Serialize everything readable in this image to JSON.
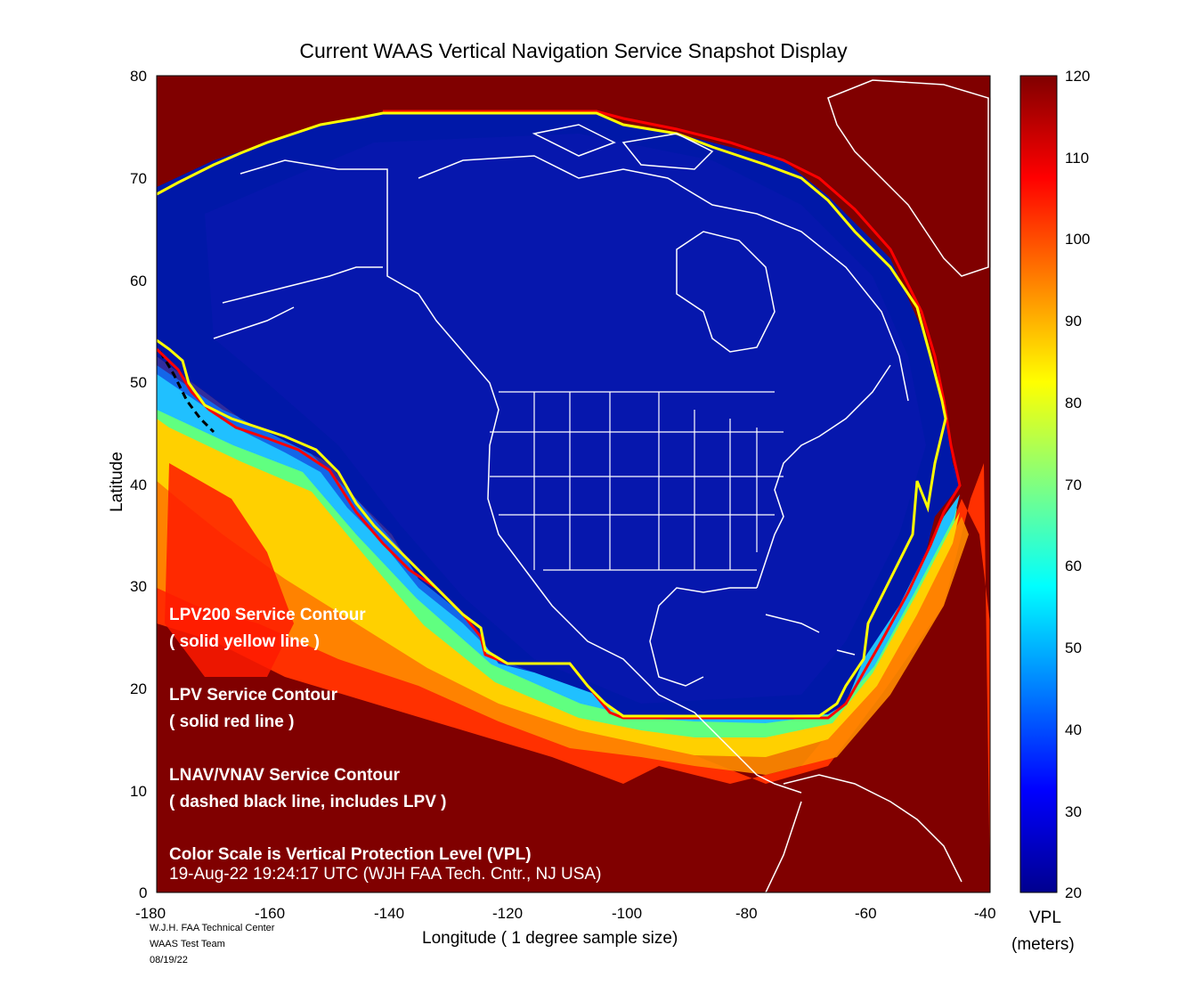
{
  "title": "Current WAAS Vertical Navigation Service Snapshot Display",
  "map": {
    "xlabel": "Longitude   ( 1 degree sample size)",
    "ylabel": "Latitude",
    "xticks": [
      "-180",
      "-160",
      "-140",
      "-120",
      "-100",
      "-80",
      "-60",
      "-40"
    ],
    "yticks": [
      "80",
      "70",
      "60",
      "50",
      "40",
      "30",
      "20",
      "10",
      "0"
    ],
    "lon_range": [
      -180,
      -40
    ],
    "lat_range": [
      0,
      80
    ]
  },
  "annotations": {
    "lpv200_title": "LPV200 Service Contour",
    "lpv200_desc": "( solid yellow line )",
    "lpv_title": "LPV Service Contour",
    "lpv_desc": "( solid red line )",
    "lnav_title": "LNAV/VNAV Service Contour",
    "lnav_desc": "( dashed black line, includes LPV )",
    "scale_note": "Color Scale is Vertical Protection Level (VPL)",
    "timestamp": "19-Aug-22 19:24:17 UTC  (WJH FAA Tech. Cntr., NJ USA)"
  },
  "colorbar": {
    "ticks": [
      "120",
      "110",
      "100",
      "90",
      "80",
      "70",
      "60",
      "50",
      "40",
      "30",
      "20"
    ],
    "label_line1": "VPL",
    "label_line2": "(meters)",
    "range": [
      20,
      120
    ]
  },
  "credits": {
    "line1": "W.J.H. FAA Technical Center",
    "line2": "WAAS Test Team",
    "line3": "08/19/22"
  },
  "colors": {
    "lpv200": "#ffff00",
    "lpv": "#ff0000",
    "lnav": "#000000",
    "coverage": "#001aa0",
    "outside": "#800000"
  }
}
